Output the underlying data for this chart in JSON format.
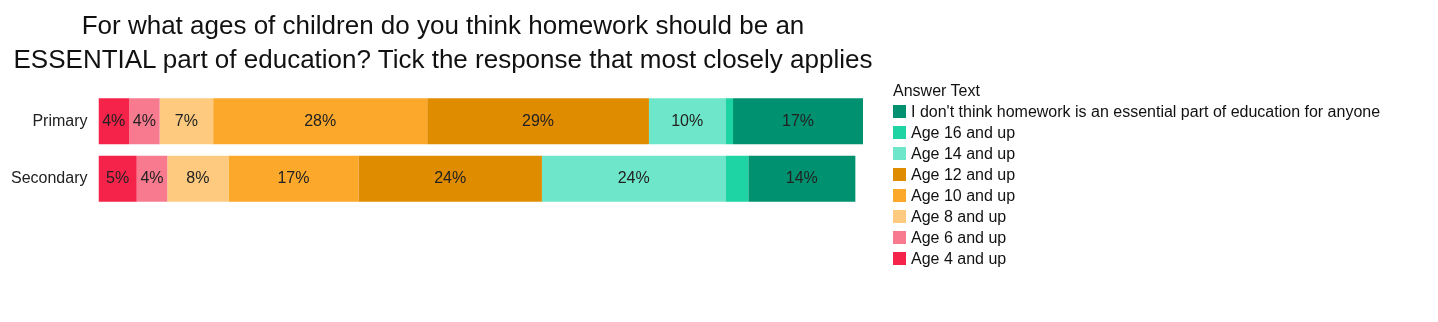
{
  "chart_data": {
    "type": "bar",
    "orientation": "horizontal",
    "stacked": true,
    "title": "For what ages of children do you think homework should be an ESSENTIAL part of education? Tick the response that most closely applies",
    "legend_title": "Answer Text",
    "legend": "right",
    "categories": [
      "Primary",
      "Secondary"
    ],
    "series": [
      {
        "name": "Age 4 and up",
        "color": "#f5234a",
        "values": [
          4,
          5
        ],
        "value_labels": [
          "4%",
          "5%"
        ]
      },
      {
        "name": "Age 6 and up",
        "color": "#f87a8e",
        "values": [
          4,
          4
        ],
        "value_labels": [
          "4%",
          "4%"
        ]
      },
      {
        "name": "Age 8 and up",
        "color": "#fdca7f",
        "values": [
          7,
          8
        ],
        "value_labels": [
          "7%",
          "8%"
        ]
      },
      {
        "name": "Age 10 and up",
        "color": "#fca82b",
        "values": [
          28,
          17
        ],
        "value_labels": [
          "28%",
          "17%"
        ]
      },
      {
        "name": "Age 12 and up",
        "color": "#e08c00",
        "values": [
          29,
          24
        ],
        "value_labels": [
          "29%",
          "24%"
        ]
      },
      {
        "name": "Age 14 and up",
        "color": "#6ee6c9",
        "values": [
          10,
          24
        ],
        "value_labels": [
          "10%",
          "24%"
        ]
      },
      {
        "name": "Age 16 and up",
        "color": "#1ed3a4",
        "values": [
          1,
          3
        ],
        "value_labels": [
          null,
          null
        ]
      },
      {
        "name": "I don't think homework is an essential part of education for anyone",
        "color": "#009171",
        "values": [
          17,
          14
        ],
        "value_labels": [
          "17%",
          "14%"
        ]
      }
    ]
  }
}
